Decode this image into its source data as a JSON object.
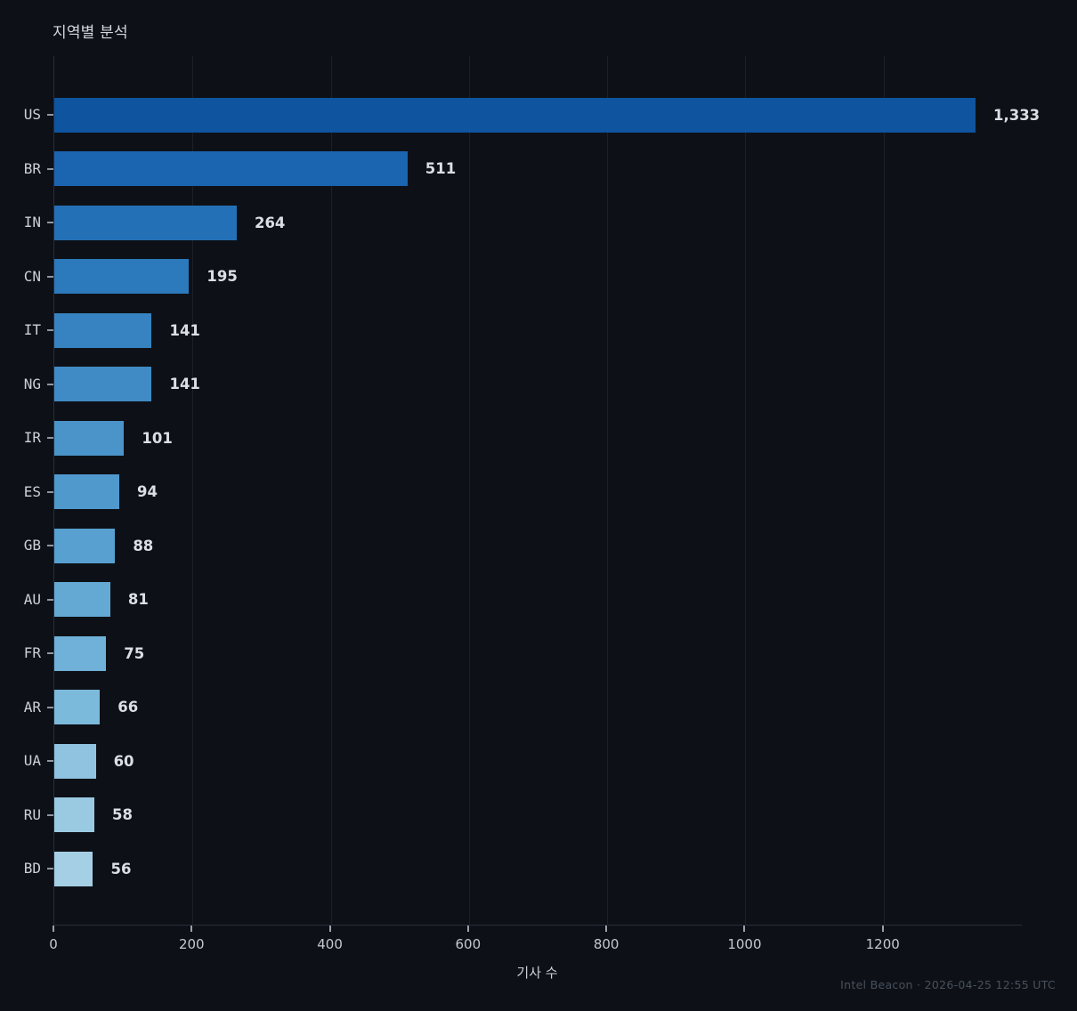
{
  "chart_data": {
    "type": "bar",
    "orientation": "horizontal",
    "title": "지역별 분석",
    "xlabel": "기사 수",
    "categories": [
      "US",
      "BR",
      "IN",
      "CN",
      "IT",
      "NG",
      "IR",
      "ES",
      "GB",
      "AU",
      "FR",
      "AR",
      "UA",
      "RU",
      "BD"
    ],
    "values": [
      1333,
      511,
      264,
      195,
      141,
      141,
      101,
      94,
      88,
      81,
      75,
      66,
      60,
      58,
      56
    ],
    "value_labels": [
      "1,333",
      "511",
      "264",
      "195",
      "141",
      "141",
      "101",
      "94",
      "88",
      "81",
      "75",
      "66",
      "60",
      "58",
      "56"
    ],
    "bar_colors": [
      "#0e549f",
      "#1b64b0",
      "#2470b6",
      "#2c79bc",
      "#3783c1",
      "#408bc6",
      "#4a94ca",
      "#5099cd",
      "#57a0d0",
      "#63a9d4",
      "#6fb1d8",
      "#7cbadc",
      "#8fc3df",
      "#9acae2",
      "#a5cfe4"
    ],
    "x_ticks": [
      0,
      200,
      400,
      600,
      800,
      1000,
      1200
    ],
    "xlim": [
      0,
      1400
    ],
    "legend": "none",
    "grid": "vertical-faint",
    "background_color": "#0d1117",
    "text_color": "#ccd1d8"
  },
  "footer": {
    "text": "Intel Beacon · 2026-04-25 12:55 UTC"
  }
}
